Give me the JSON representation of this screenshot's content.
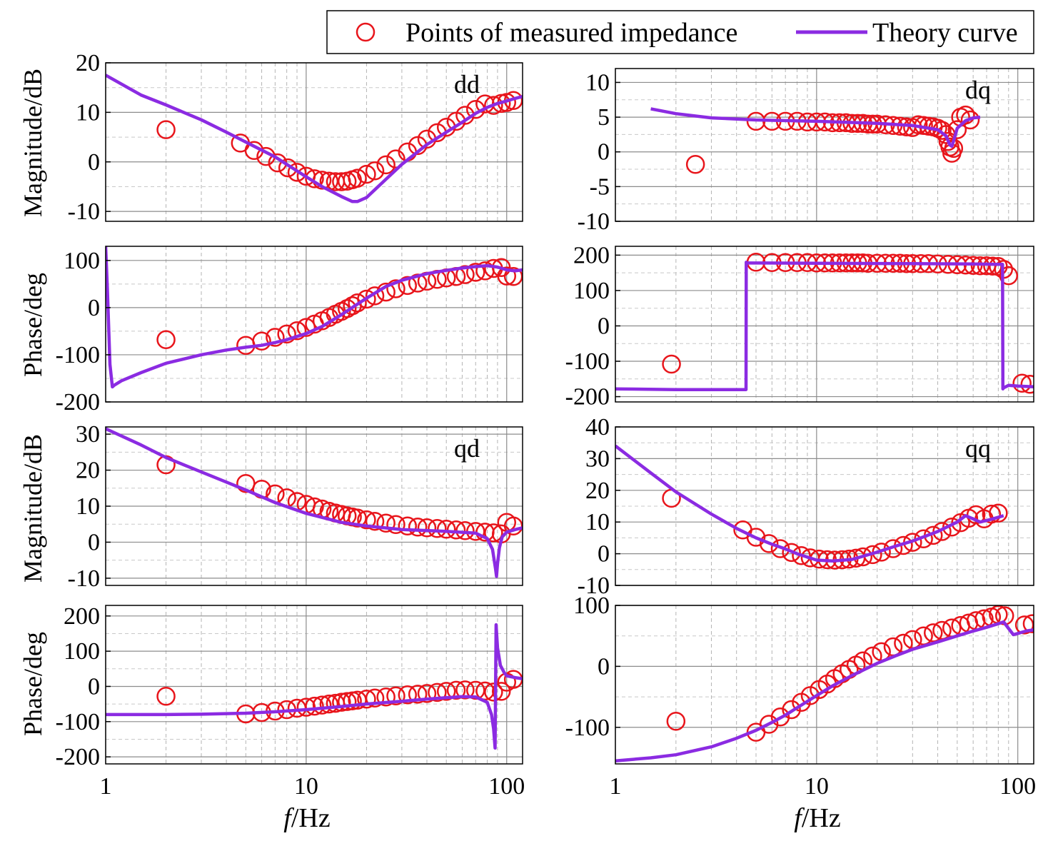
{
  "legend": {
    "measured_label": "Points of measured impedance",
    "theory_label": "Theory curve",
    "measured_color": "#e8151b",
    "theory_color": "#8b2be2"
  },
  "x_axis": {
    "label_italic": "f",
    "label_unit": "/Hz",
    "scale": "log",
    "xlim": [
      1,
      120
    ],
    "tick_values": [
      1,
      10,
      100
    ],
    "tick_labels": [
      "1",
      "10",
      "100"
    ]
  },
  "chart_data": [
    {
      "id": "dd-mag",
      "panel": "dd",
      "type": "line",
      "title": "dd",
      "ylabel": "Magnitude/dB",
      "xlabel": "",
      "ylim": [
        -12,
        20
      ],
      "yticks": [
        -10,
        0,
        10,
        20
      ],
      "ytick_labels": [
        "-10",
        "0",
        "10",
        "20"
      ],
      "theory": {
        "x": [
          1,
          1.5,
          2,
          3,
          4,
          5,
          7,
          10,
          12,
          15,
          17,
          18,
          20,
          25,
          30,
          40,
          50,
          60,
          70,
          80,
          90,
          100,
          110,
          120
        ],
        "y": [
          17.5,
          13.5,
          11.5,
          8.5,
          6,
          4,
          1,
          -3,
          -5,
          -7,
          -8,
          -8,
          -7.2,
          -3.5,
          -0.5,
          3.5,
          6,
          8,
          9.8,
          11,
          11.8,
          12.3,
          12.8,
          13.2
        ]
      },
      "measured": {
        "x": [
          2,
          4.7,
          5.5,
          6.3,
          7.2,
          8.1,
          9,
          10,
          11,
          12,
          13,
          14,
          15,
          16,
          17,
          18,
          20,
          22,
          25,
          28,
          32,
          36,
          40,
          45,
          50,
          56,
          62,
          70,
          78,
          86,
          94,
          100,
          108
        ],
        "y": [
          6.5,
          3.8,
          2.3,
          1.1,
          -0.2,
          -1.2,
          -2.1,
          -2.9,
          -3.4,
          -3.7,
          -3.9,
          -4.0,
          -4.0,
          -3.9,
          -3.6,
          -3.3,
          -2.5,
          -1.8,
          -0.6,
          0.6,
          2.0,
          3.3,
          4.6,
          5.9,
          7.0,
          8.2,
          9.4,
          10.6,
          11.7,
          11.4,
          11.8,
          12.0,
          12.4
        ]
      }
    },
    {
      "id": "dq-mag",
      "panel": "dq",
      "type": "line",
      "title": "dq",
      "ylabel": "",
      "xlabel": "",
      "ylim": [
        -10,
        12
      ],
      "yticks": [
        -10,
        -5,
        0,
        5,
        10
      ],
      "ytick_labels": [
        "-10",
        "-5",
        "0",
        "5",
        "10"
      ],
      "theory": {
        "x": [
          1.5,
          2,
          3,
          5,
          10,
          20,
          30,
          40,
          44,
          46,
          47,
          48,
          50,
          55,
          60,
          65
        ],
        "y": [
          6.2,
          5.5,
          4.9,
          4.6,
          4.4,
          4.1,
          3.8,
          3.2,
          2.3,
          1.0,
          0.8,
          1.6,
          3.4,
          4.5,
          4.9,
          5.0
        ]
      },
      "measured": {
        "x": [
          2.5,
          5,
          6,
          7,
          8,
          9,
          10,
          11,
          12,
          13,
          14,
          15,
          16,
          17,
          18,
          19,
          20,
          22,
          24,
          26,
          28,
          30,
          32,
          34,
          36,
          38,
          40,
          42,
          44,
          45,
          46,
          47,
          48,
          50,
          52,
          55,
          58
        ],
        "y": [
          -1.8,
          4.4,
          4.4,
          4.4,
          4.4,
          4.3,
          4.3,
          4.3,
          4.2,
          4.2,
          4.2,
          4.1,
          4.1,
          4.1,
          4.0,
          4.0,
          4.0,
          3.9,
          3.8,
          3.7,
          3.6,
          3.5,
          3.9,
          3.8,
          3.7,
          3.6,
          3.4,
          3.1,
          2.5,
          1.5,
          0.7,
          -0.2,
          0.5,
          3.2,
          5.0,
          5.3,
          4.6
        ]
      }
    },
    {
      "id": "dd-phase",
      "panel": "dd",
      "type": "line",
      "title": "",
      "ylabel": "Phase/deg",
      "xlabel": "",
      "ylim": [
        -200,
        130
      ],
      "yticks": [
        -200,
        -100,
        0,
        100
      ],
      "ytick_labels": [
        "-200",
        "-100",
        "0",
        "100"
      ],
      "theory": {
        "x": [
          1,
          1.02,
          1.05,
          1.08,
          1.1,
          1.2,
          1.5,
          2,
          3,
          4,
          5,
          6,
          7,
          8,
          10,
          12,
          15,
          20,
          25,
          30,
          40,
          50,
          60,
          70,
          80,
          90,
          100,
          110,
          120
        ],
        "y": [
          130,
          40,
          -120,
          -168,
          -165,
          -155,
          -138,
          -118,
          -100,
          -90,
          -84,
          -80,
          -74,
          -68,
          -55,
          -40,
          -15,
          20,
          45,
          58,
          72,
          79,
          84,
          87,
          89,
          86,
          80,
          78,
          80
        ]
      },
      "measured": {
        "x": [
          2,
          5,
          6,
          7,
          8,
          9,
          10,
          11,
          12,
          13,
          14,
          15,
          16,
          17,
          18,
          20,
          22,
          25,
          28,
          32,
          36,
          40,
          45,
          50,
          56,
          62,
          70,
          78,
          86,
          94,
          100,
          108
        ],
        "y": [
          -68,
          -80,
          -71,
          -63,
          -56,
          -49,
          -42,
          -35,
          -28,
          -21,
          -14,
          -8,
          -2,
          4,
          10,
          18,
          25,
          33,
          40,
          47,
          52,
          56,
          60,
          63,
          66,
          70,
          75,
          78,
          83,
          85,
          67,
          66
        ]
      }
    },
    {
      "id": "dq-phase",
      "panel": "dq",
      "type": "line",
      "title": "",
      "ylabel": "",
      "xlabel": "",
      "ylim": [
        -215,
        225
      ],
      "yticks": [
        -200,
        -100,
        0,
        100,
        200
      ],
      "ytick_labels": [
        "-200",
        "-100",
        "0",
        "100",
        "200"
      ],
      "theory": {
        "x": [
          1,
          2,
          3,
          4,
          4.46,
          4.47,
          4.5,
          10,
          30,
          60,
          84,
          84.3,
          85,
          90,
          100,
          120
        ],
        "y": [
          -178,
          -180,
          -180,
          -180,
          -180,
          180,
          178,
          177,
          176,
          175,
          174,
          -178,
          -175,
          -168,
          -170,
          -172
        ]
      },
      "measured": {
        "x": [
          1.9,
          5,
          6,
          7,
          8,
          9,
          10,
          11,
          12,
          13,
          14,
          15,
          16,
          17,
          18,
          20,
          22,
          24,
          26,
          28,
          30,
          33,
          36,
          40,
          45,
          50,
          55,
          60,
          65,
          70,
          75,
          80,
          85,
          90,
          105,
          115
        ],
        "y": [
          -108,
          180,
          179,
          179,
          179,
          179,
          178,
          178,
          178,
          178,
          178,
          178,
          178,
          178,
          177,
          177,
          177,
          177,
          177,
          176,
          176,
          176,
          176,
          175,
          174,
          173,
          172,
          171,
          170,
          170,
          169,
          168,
          160,
          142,
          -162,
          -165
        ]
      }
    },
    {
      "id": "qd-mag",
      "panel": "qd",
      "type": "line",
      "title": "qd",
      "ylabel": "Magnitude/dB",
      "xlabel": "",
      "ylim": [
        -12,
        32
      ],
      "yticks": [
        -10,
        0,
        10,
        20,
        30
      ],
      "ytick_labels": [
        "-10",
        "0",
        "10",
        "20",
        "30"
      ],
      "theory": {
        "x": [
          1,
          1.5,
          2,
          3,
          5,
          7,
          10,
          15,
          20,
          30,
          50,
          70,
          80,
          85,
          88,
          89,
          90,
          92,
          95,
          100,
          110,
          120
        ],
        "y": [
          31.5,
          27,
          23.5,
          19.5,
          14.5,
          11,
          8,
          5.5,
          4.5,
          3.5,
          3.0,
          2.5,
          1.0,
          -2.0,
          -7.5,
          -9.5,
          -6.0,
          -1.5,
          1.5,
          2.8,
          3.5,
          4.0
        ]
      },
      "measured": {
        "x": [
          2,
          5,
          6,
          7,
          8,
          9,
          10,
          11,
          12,
          13,
          14,
          15,
          16,
          17,
          18,
          20,
          22,
          25,
          28,
          32,
          36,
          40,
          45,
          50,
          56,
          62,
          70,
          78,
          86,
          94,
          100,
          108
        ],
        "y": [
          21.5,
          16.3,
          14.7,
          13.4,
          12.3,
          11.3,
          10.5,
          9.8,
          9.2,
          8.6,
          8.1,
          7.7,
          7.3,
          7.0,
          6.7,
          6.2,
          5.8,
          5.3,
          4.9,
          4.5,
          4.2,
          4.0,
          3.8,
          3.6,
          3.4,
          3.2,
          3.0,
          2.8,
          2.6,
          2.3,
          5.5,
          4.5
        ]
      }
    },
    {
      "id": "qq-mag",
      "panel": "qq",
      "type": "line",
      "title": "qq",
      "ylabel": "",
      "xlabel": "",
      "ylim": [
        -10,
        40
      ],
      "yticks": [
        -10,
        0,
        10,
        20,
        30,
        40
      ],
      "ytick_labels": [
        "-10",
        "0",
        "10",
        "20",
        "30",
        "40"
      ],
      "theory": {
        "x": [
          1,
          1.5,
          2,
          3,
          4,
          5,
          6,
          7,
          8,
          10,
          12,
          15,
          20,
          25,
          30,
          40,
          50,
          55,
          60,
          65,
          70,
          75,
          80,
          85
        ],
        "y": [
          34,
          25.5,
          19.5,
          12.5,
          8,
          5,
          3,
          1.5,
          0,
          -2,
          -2.3,
          -1.8,
          0.5,
          2.5,
          4,
          7,
          10,
          12,
          11,
          10,
          10.5,
          11,
          11.5,
          12
        ]
      },
      "measured": {
        "x": [
          1.9,
          4.3,
          5,
          5.8,
          6.6,
          7.5,
          8.4,
          9.3,
          10.3,
          11.3,
          12.3,
          13.4,
          14.5,
          15.7,
          17,
          19,
          21,
          24,
          27,
          30,
          34,
          38,
          42,
          47,
          52,
          57,
          62,
          68,
          74,
          80
        ],
        "y": [
          17.5,
          7.5,
          5.2,
          3.2,
          1.6,
          0.4,
          -0.6,
          -1.3,
          -1.7,
          -1.9,
          -2.0,
          -1.9,
          -1.7,
          -1.4,
          -1.0,
          -0.3,
          0.5,
          1.6,
          2.6,
          3.6,
          4.7,
          5.8,
          7.0,
          8.4,
          9.8,
          11.2,
          12.3,
          11.0,
          12.5,
          12.8
        ]
      }
    },
    {
      "id": "qd-phase",
      "panel": "qd",
      "type": "line",
      "title": "",
      "ylabel": "Phase/deg",
      "xlabel": "",
      "ylim": [
        -220,
        230
      ],
      "yticks": [
        -200,
        -100,
        0,
        100,
        200
      ],
      "ytick_labels": [
        "-200",
        "-100",
        "0",
        "100",
        "200"
      ],
      "theory": {
        "x": [
          1,
          2,
          3,
          5,
          7,
          10,
          15,
          20,
          30,
          40,
          50,
          60,
          70,
          80,
          84,
          86,
          87.5,
          88,
          88.5,
          90,
          93,
          97,
          100,
          110,
          120
        ],
        "y": [
          -80,
          -80,
          -79,
          -76,
          -72,
          -66,
          -57,
          -50,
          -42,
          -36,
          -32,
          -29,
          -30,
          -45,
          -80,
          -120,
          -175,
          0,
          175,
          110,
          60,
          40,
          30,
          25,
          22
        ]
      },
      "measured": {
        "x": [
          2,
          5,
          6,
          7,
          8,
          9,
          10,
          11,
          12,
          13,
          14,
          15,
          16,
          17,
          18,
          20,
          22,
          25,
          28,
          32,
          36,
          40,
          45,
          50,
          56,
          62,
          70,
          78,
          86,
          94,
          100,
          108
        ],
        "y": [
          -28,
          -78,
          -74,
          -70,
          -66,
          -62,
          -59,
          -56,
          -53,
          -50,
          -48,
          -45,
          -43,
          -41,
          -39,
          -36,
          -33,
          -30,
          -27,
          -24,
          -22,
          -20,
          -17,
          -14,
          -11,
          -10,
          -11,
          -13,
          -16,
          -14,
          12,
          20
        ]
      }
    },
    {
      "id": "qq-phase",
      "panel": "qq",
      "type": "line",
      "title": "",
      "ylabel": "",
      "xlabel": "",
      "ylim": [
        -160,
        100
      ],
      "yticks": [
        -100,
        0,
        100
      ],
      "ytick_labels": [
        "-100",
        "0",
        "100"
      ],
      "theory": {
        "x": [
          1,
          1.5,
          2,
          3,
          4,
          5,
          6,
          7,
          8,
          10,
          12,
          15,
          20,
          25,
          30,
          40,
          50,
          60,
          70,
          80,
          85,
          90,
          95,
          100,
          110,
          120
        ],
        "y": [
          -155,
          -150,
          -145,
          -132,
          -118,
          -105,
          -92,
          -80,
          -68,
          -48,
          -32,
          -15,
          5,
          18,
          28,
          40,
          50,
          58,
          64,
          70,
          73,
          62,
          52,
          54,
          58,
          60
        ]
      },
      "measured": {
        "x": [
          2,
          5,
          5.8,
          6.6,
          7.5,
          8.4,
          9.3,
          10.3,
          11.3,
          12.3,
          13.4,
          14.5,
          15.7,
          17,
          19,
          21,
          24,
          27,
          30,
          34,
          38,
          42,
          47,
          52,
          57,
          62,
          68,
          74,
          80,
          86,
          108,
          118
        ],
        "y": [
          -90,
          -108,
          -95,
          -83,
          -71,
          -59,
          -48,
          -38,
          -29,
          -20,
          -12,
          -5,
          2,
          9,
          17,
          24,
          32,
          38,
          44,
          50,
          55,
          59,
          63,
          67,
          71,
          75,
          78,
          81,
          85,
          83,
          68,
          70
        ]
      }
    }
  ]
}
